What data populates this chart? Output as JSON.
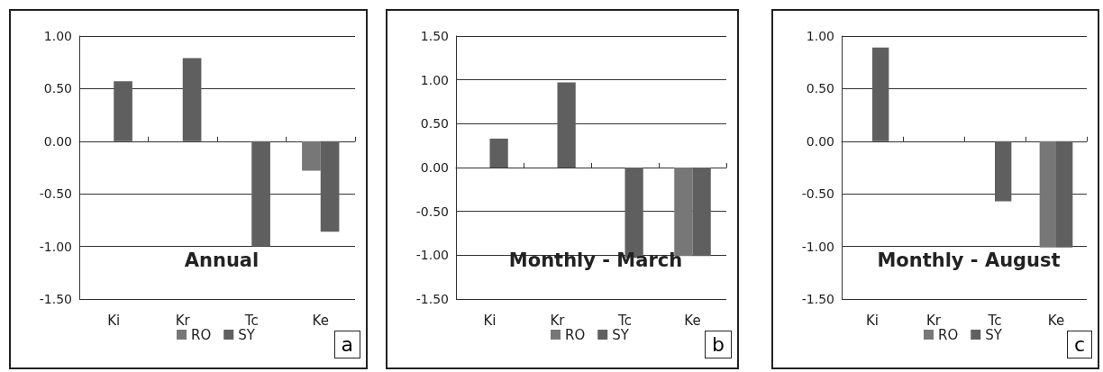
{
  "chart_data": [
    {
      "type": "bar",
      "title": "Annual",
      "categories": [
        "Ki",
        "Kr",
        "Tc",
        "Ke"
      ],
      "series": [
        {
          "name": "RO",
          "color": "#777777",
          "values": [
            null,
            null,
            null,
            -0.28
          ]
        },
        {
          "name": "SY",
          "color": "#5f5f5f",
          "values": [
            0.57,
            0.79,
            -1.0,
            -0.86
          ]
        }
      ],
      "ylim": [
        -1.5,
        1
      ],
      "yticks": [
        {
          "value": -1.5,
          "label": "-1.50"
        },
        {
          "value": -1,
          "label": "-1.00"
        },
        {
          "value": -0.5,
          "label": "-0.50"
        },
        {
          "value": 0,
          "label": "0.00"
        },
        {
          "value": 0.5,
          "label": "0.50"
        },
        {
          "value": 1,
          "label": "1.00"
        }
      ],
      "grid": "y",
      "legend": "bottom",
      "annotations": [
        "a"
      ]
    },
    {
      "type": "bar",
      "title": "Monthly - March",
      "categories": [
        "Ki",
        "Kr",
        "Tc",
        "Ke"
      ],
      "series": [
        {
          "name": "RO",
          "color": "#777777",
          "values": [
            null,
            null,
            null,
            -1.01
          ]
        },
        {
          "name": "SY",
          "color": "#5f5f5f",
          "values": [
            0.33,
            0.97,
            -1.03,
            -1.01
          ]
        }
      ],
      "ylim": [
        -1.5,
        1.5
      ],
      "yticks": [
        {
          "value": -1.5,
          "label": "-1.50"
        },
        {
          "value": -1,
          "label": "-1.00"
        },
        {
          "value": -0.5,
          "label": "-0.50"
        },
        {
          "value": 0,
          "label": "0.00"
        },
        {
          "value": 0.5,
          "label": "0.50"
        },
        {
          "value": 1,
          "label": "1.00"
        },
        {
          "value": 1.5,
          "label": "1.50"
        }
      ],
      "grid": "y",
      "legend": "bottom",
      "annotations": [
        "b"
      ]
    },
    {
      "type": "bar",
      "title": "Monthly - August",
      "categories": [
        "Ki",
        "Kr",
        "Tc",
        "Ke"
      ],
      "series": [
        {
          "name": "RO",
          "color": "#777777",
          "values": [
            null,
            null,
            null,
            -1.01
          ]
        },
        {
          "name": "SY",
          "color": "#5f5f5f",
          "values": [
            0.89,
            null,
            -0.57,
            -1.01
          ]
        }
      ],
      "ylim": [
        -1.5,
        1
      ],
      "yticks": [
        {
          "value": -1.5,
          "label": "-1.50"
        },
        {
          "value": -1,
          "label": "-1.00"
        },
        {
          "value": -0.5,
          "label": "-0.50"
        },
        {
          "value": 0,
          "label": "0.00"
        },
        {
          "value": 0.5,
          "label": "0.50"
        },
        {
          "value": 1,
          "label": "1.00"
        }
      ],
      "grid": "y",
      "legend": "bottom",
      "annotations": [
        "c"
      ]
    }
  ]
}
